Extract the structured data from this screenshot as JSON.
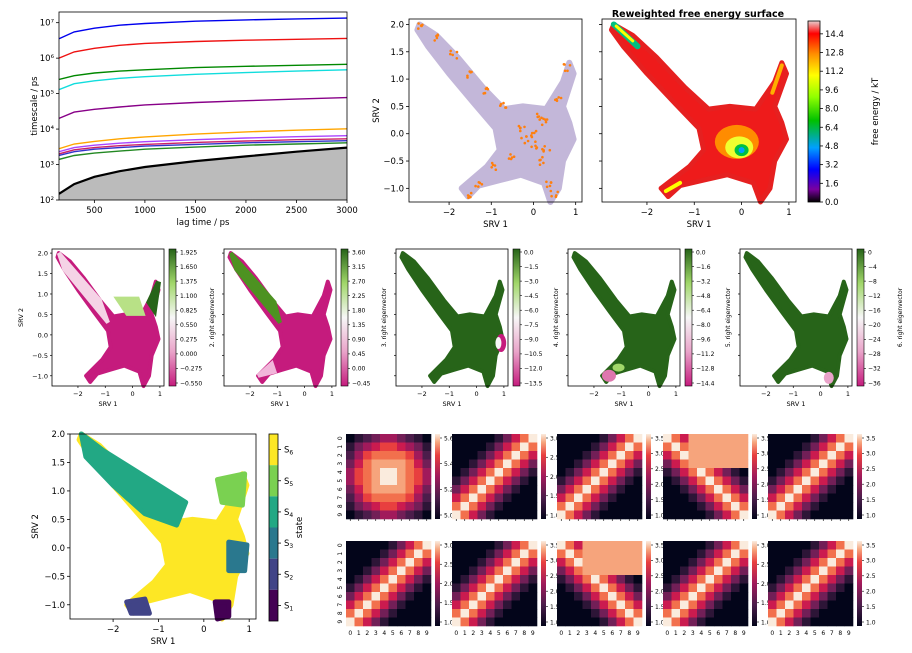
{
  "chart_data": [
    {
      "type": "line",
      "name": "implied-timescales",
      "xlabel": "lag time / ps",
      "ylabel": "timescale / ps",
      "xlim": [
        150,
        3000
      ],
      "ylim": [
        100,
        20000000
      ],
      "y_scale": "log",
      "x_ticks": [
        500,
        1000,
        1500,
        2000,
        2500,
        3000
      ],
      "y_ticks": [
        {
          "v": 100,
          "label": "10²"
        },
        {
          "v": 1000,
          "label": "10³"
        },
        {
          "v": 10000,
          "label": "10⁴"
        },
        {
          "v": 100000,
          "label": "10⁵"
        },
        {
          "v": 1000000,
          "label": "10⁶"
        },
        {
          "v": 10000000,
          "label": "10⁷"
        }
      ],
      "x": [
        150,
        300,
        500,
        750,
        1000,
        1500,
        2000,
        2500,
        3000
      ],
      "series": [
        {
          "color": "#0000ee",
          "values": [
            3500000,
            5500000,
            7000000,
            8500000,
            9500000,
            11000000,
            12000000,
            12800000,
            13500000
          ]
        },
        {
          "color": "#ee1111",
          "values": [
            1000000,
            1500000,
            1900000,
            2300000,
            2600000,
            2950000,
            3200000,
            3400000,
            3600000
          ]
        },
        {
          "color": "#008800",
          "values": [
            250000,
            320000,
            380000,
            430000,
            470000,
            540000,
            590000,
            630000,
            670000
          ]
        },
        {
          "color": "#11dddd",
          "values": [
            130000,
            190000,
            230000,
            270000,
            300000,
            350000,
            390000,
            430000,
            470000
          ]
        },
        {
          "color": "#880088",
          "values": [
            20000,
            30000,
            36000,
            42000,
            48000,
            56000,
            63000,
            70000,
            77000
          ]
        },
        {
          "color": "#ffa500",
          "values": [
            2800,
            3800,
            4500,
            5300,
            6000,
            7200,
            8300,
            9300,
            10200
          ]
        },
        {
          "color": "#aa44ff",
          "values": [
            2300,
            3000,
            3500,
            4000,
            4400,
            5000,
            5600,
            6100,
            6500
          ]
        },
        {
          "color": "#cc2266",
          "values": [
            2000,
            2600,
            3000,
            3400,
            3700,
            4200,
            4600,
            5000,
            5300
          ]
        },
        {
          "color": "#3333cc",
          "values": [
            1800,
            2300,
            2700,
            3000,
            3300,
            3700,
            4100,
            4400,
            4700
          ]
        },
        {
          "color": "#228822",
          "values": [
            1400,
            1800,
            2100,
            2400,
            2700,
            3100,
            3500,
            3800,
            4100
          ]
        }
      ],
      "threshold": {
        "color": "#000000",
        "fill": "#bbbbbb",
        "values": [
          150,
          280,
          450,
          650,
          850,
          1250,
          1700,
          2300,
          3000
        ]
      }
    },
    {
      "type": "scatter",
      "name": "srv-scatter",
      "xlabel": "SRV 1",
      "ylabel": "SRV 2",
      "xlim": [
        -2.95,
        1.15
      ],
      "ylim": [
        -1.25,
        2.1
      ],
      "x_ticks": [
        -2,
        -1,
        0,
        1
      ],
      "y_ticks": [
        -1.0,
        -0.5,
        0.0,
        0.5,
        1.0,
        1.5,
        2.0
      ],
      "series_colors": [
        "#c0b4d8",
        "#ff7f0e"
      ]
    },
    {
      "type": "heatmap",
      "name": "free-energy-surface",
      "title": "Reweighted free energy surface",
      "xlabel": "SRV 1",
      "colorbar_label": "free energy / kT",
      "xlim": [
        -2.95,
        1.15
      ],
      "ylim": [
        -1.25,
        2.1
      ],
      "x_ticks": [
        -2,
        -1,
        0,
        1
      ],
      "colorbar_ticks": [
        "0.0",
        "1.6",
        "3.2",
        "4.8",
        "6.4",
        "8.0",
        "9.6",
        "11.2",
        "12.8",
        "14.4"
      ],
      "colorbar_range": [
        0,
        15.5
      ]
    },
    {
      "type": "scatter",
      "name": "eigenvector-maps",
      "xlabel": "SRV 1",
      "ylabel": "SRV 2",
      "x_ticks": [
        -2,
        -1,
        0,
        1
      ],
      "y_ticks": [
        -1.0,
        -0.5,
        0.0,
        0.5,
        1.0,
        1.5,
        2.0
      ],
      "panels": [
        {
          "label": "2. right eigenvector",
          "ticks": [
            "1.925",
            "1.650",
            "1.375",
            "1.100",
            "0.825",
            "0.550",
            "0.275",
            "0.000",
            "−0.275",
            "−0.550"
          ]
        },
        {
          "label": "3. right eigenvector",
          "ticks": [
            "3.60",
            "3.15",
            "2.70",
            "2.25",
            "1.80",
            "1.35",
            "0.90",
            "0.45",
            "0.00",
            "−0.45"
          ]
        },
        {
          "label": "4. right eigenvector",
          "ticks": [
            "0.0",
            "−1.5",
            "−3.0",
            "−4.5",
            "−6.0",
            "−7.5",
            "−9.0",
            "−10.5",
            "−12.0",
            "−13.5"
          ]
        },
        {
          "label": "5. right eigenvector",
          "ticks": [
            "0.0",
            "−1.6",
            "−3.2",
            "−4.8",
            "−6.4",
            "−8.0",
            "−9.6",
            "−11.2",
            "−12.8",
            "−14.4"
          ]
        },
        {
          "label": "6. right eigenvector",
          "ticks": [
            "0",
            "−4",
            "−8",
            "−12",
            "−16",
            "−20",
            "−24",
            "−28",
            "−32",
            "−36"
          ]
        }
      ]
    },
    {
      "type": "scatter",
      "name": "state-assignment",
      "xlabel": "SRV 1",
      "ylabel": "SRV 2",
      "colorbar_label": "state",
      "xlim": [
        -2.95,
        1.15
      ],
      "ylim": [
        -1.25,
        2.0
      ],
      "x_ticks": [
        -2,
        -1,
        0,
        1
      ],
      "y_ticks": [
        -1.0,
        -0.5,
        0.0,
        0.5,
        1.0,
        1.5,
        2.0
      ],
      "states": [
        {
          "label": "S6",
          "color": "#fde725"
        },
        {
          "label": "S5",
          "color": "#7ad151"
        },
        {
          "label": "S4",
          "color": "#22a884"
        },
        {
          "label": "S3",
          "color": "#2a788e"
        },
        {
          "label": "S2",
          "color": "#414487"
        },
        {
          "label": "S1",
          "color": "#440154"
        }
      ]
    },
    {
      "type": "heatmap",
      "name": "transition-matrices",
      "tick_labels": [
        "0",
        "1",
        "2",
        "3",
        "4",
        "5",
        "6",
        "7",
        "8",
        "9"
      ],
      "panels": [
        {
          "ticks": [
            "5.6",
            "5.4",
            "5.2",
            "5.0"
          ],
          "pattern": "blob"
        },
        {
          "ticks": [
            "3.0",
            "2.5",
            "2.0",
            "1.5",
            "1.0"
          ],
          "pattern": "diag"
        },
        {
          "ticks": [
            "3.5",
            "3.0",
            "2.5",
            "2.0",
            "1.5",
            "1.0"
          ],
          "pattern": "diag"
        },
        {
          "ticks": [
            "3.5",
            "3.0",
            "2.5",
            "2.0",
            "1.5",
            "1.0"
          ],
          "pattern": "block"
        },
        {
          "ticks": [
            "3.5",
            "3.0",
            "2.5",
            "2.0",
            "1.5",
            "1.0"
          ],
          "pattern": "diag"
        },
        {
          "ticks": [
            "3.0",
            "2.5",
            "2.0",
            "1.5",
            "1.0"
          ],
          "pattern": "diag"
        },
        {
          "ticks": [
            "3.5",
            "3.0",
            "2.5",
            "2.0",
            "1.5",
            "1.0"
          ],
          "pattern": "diag"
        },
        {
          "ticks": [
            "3.5",
            "3.0",
            "2.5",
            "2.0",
            "1.5",
            "1.0"
          ],
          "pattern": "block"
        },
        {
          "ticks": [
            "3.0",
            "2.5",
            "2.0",
            "1.5",
            "1.0"
          ],
          "pattern": "diag"
        },
        {
          "ticks": [
            "3.5",
            "3.0",
            "2.5",
            "2.0",
            "1.5",
            "1.0"
          ],
          "pattern": "diag"
        }
      ]
    }
  ]
}
